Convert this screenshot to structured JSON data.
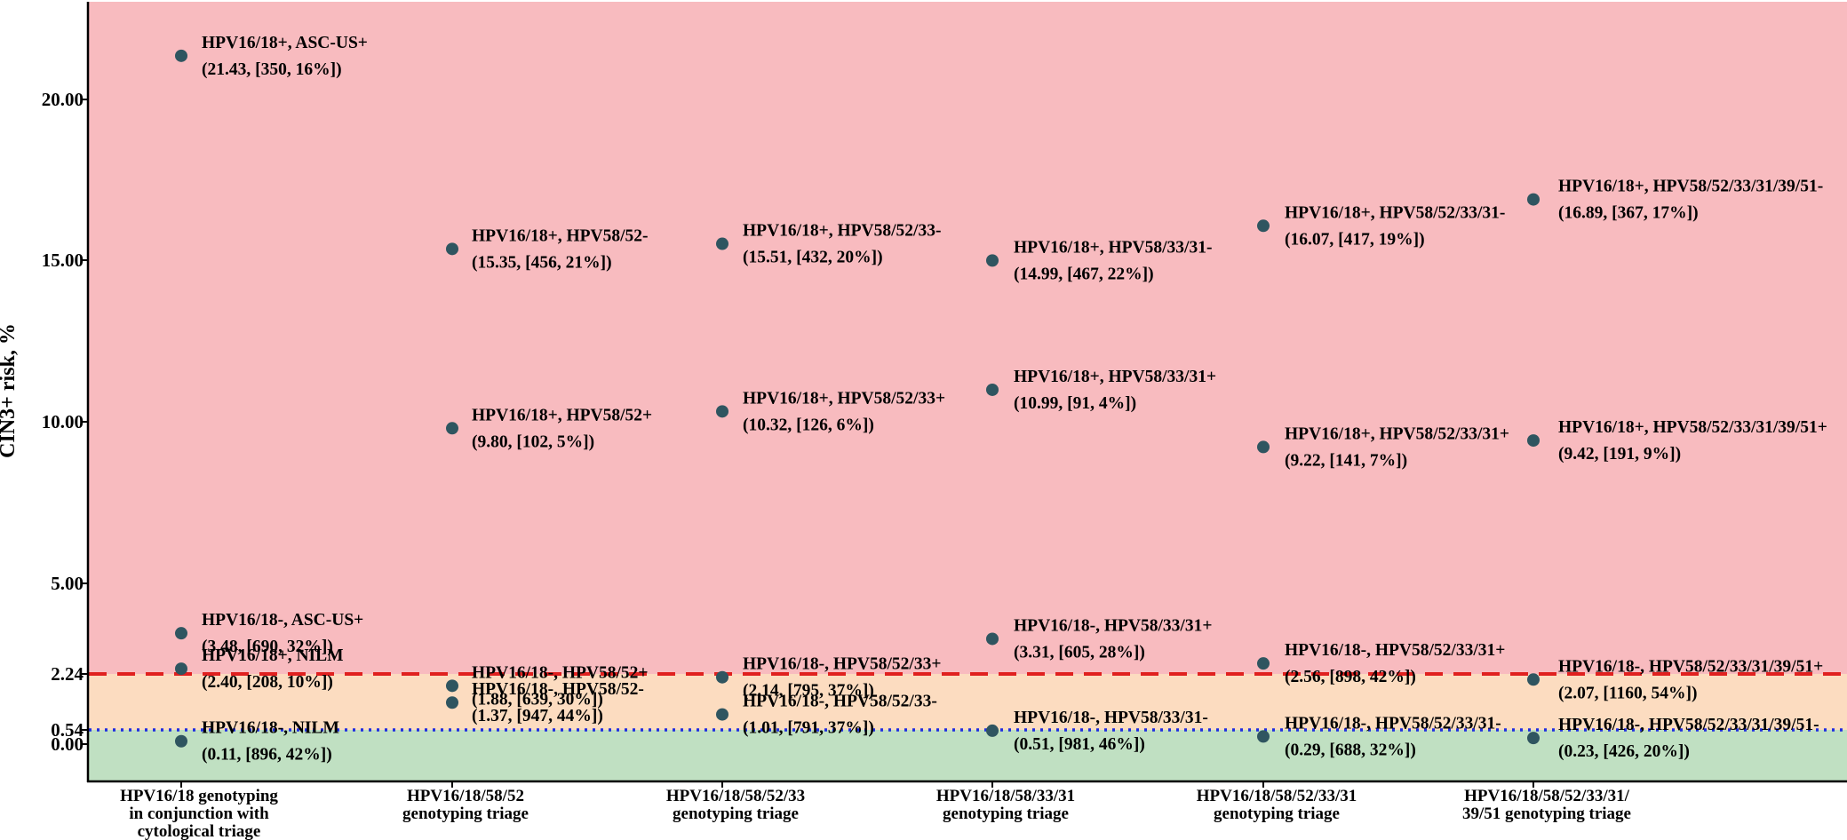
{
  "chart_data": {
    "type": "scatter",
    "title": "",
    "xlabel": "",
    "ylabel": "CIN3+ risk, %",
    "y_scale": "piecewise-linear (0 to 5 expanded)",
    "ylim": [
      -1.2,
      23.2
    ],
    "y_ticks": [
      0.0,
      0.54,
      2.24,
      5.0,
      10.0,
      15.0,
      20.0
    ],
    "y_tick_labels": [
      "0.00",
      "0.54",
      "2.24",
      "5.00",
      "10.00",
      "15.00",
      "20.00"
    ],
    "grid": false,
    "legend": "none",
    "risk_bands": [
      {
        "name": "low",
        "from": -1.2,
        "to": 0.54,
        "color": "#c0e0c2"
      },
      {
        "name": "intermediate",
        "from": 0.54,
        "to": 2.24,
        "color": "#fcdcc0"
      },
      {
        "name": "high",
        "from": 2.24,
        "to": 23.2,
        "color": "#f8bbbf"
      }
    ],
    "thresholds": [
      {
        "value": 2.24,
        "style": "dashed",
        "color": "#e0201f"
      },
      {
        "value": 0.54,
        "style": "dotted",
        "color": "#1f2de0"
      }
    ],
    "point_color": "#2f5560",
    "categories": [
      [
        "HPV16/18 genotyping",
        "in conjunction with",
        "cytological triage"
      ],
      [
        "HPV16/18/58/52",
        "genotyping triage"
      ],
      [
        "HPV16/18/58/52/33",
        "genotyping triage"
      ],
      [
        "HPV16/18/58/33/31",
        "genotyping triage"
      ],
      [
        "HPV16/18/58/52/33/31",
        "genotyping triage"
      ],
      [
        "HPV16/18/58/52/33/31/",
        "39/51 genotyping triage"
      ]
    ],
    "points": [
      {
        "cat": 0,
        "y": 21.43,
        "line1": "HPV16/18+, ASC-US+",
        "line2": "(21.43, [350, 16%])"
      },
      {
        "cat": 0,
        "y": 3.48,
        "line1": "HPV16/18-, ASC-US+",
        "line2": "(3.48, [690, 32%])"
      },
      {
        "cat": 0,
        "y": 2.4,
        "line1": "HPV16/18+, NILM",
        "line2": "(2.40, [208, 10%])"
      },
      {
        "cat": 0,
        "y": 0.11,
        "line1": "HPV16/18-, NILM",
        "line2": "(0.11, [896, 42%])"
      },
      {
        "cat": 1,
        "y": 15.35,
        "line1": "HPV16/18+, HPV58/52-",
        "line2": "(15.35, [456, 21%])"
      },
      {
        "cat": 1,
        "y": 9.8,
        "line1": "HPV16/18+, HPV58/52+",
        "line2": "(9.80, [102, 5%])"
      },
      {
        "cat": 1,
        "y": 1.88,
        "line1": "HPV16/18-, HPV58/52+",
        "line2": "(1.88, [639, 30%])"
      },
      {
        "cat": 1,
        "y": 1.37,
        "line1": "HPV16/18-, HPV58/52-",
        "line2": "(1.37, [947, 44%])"
      },
      {
        "cat": 2,
        "y": 15.51,
        "line1": "HPV16/18+, HPV58/52/33-",
        "line2": "(15.51, [432, 20%])"
      },
      {
        "cat": 2,
        "y": 10.32,
        "line1": "HPV16/18+, HPV58/52/33+",
        "line2": "(10.32, [126, 6%])"
      },
      {
        "cat": 2,
        "y": 2.14,
        "line1": "HPV16/18-, HPV58/52/33+",
        "line2": "(2.14, [795, 37%])"
      },
      {
        "cat": 2,
        "y": 1.01,
        "line1": "HPV16/18-, HPV58/52/33-",
        "line2": "(1.01, [791, 37%])"
      },
      {
        "cat": 3,
        "y": 14.99,
        "line1": "HPV16/18+, HPV58/33/31-",
        "line2": "(14.99, [467, 22%])"
      },
      {
        "cat": 3,
        "y": 10.99,
        "line1": "HPV16/18+, HPV58/33/31+",
        "line2": "(10.99, [91, 4%])"
      },
      {
        "cat": 3,
        "y": 3.31,
        "line1": "HPV16/18-, HPV58/33/31+",
        "line2": "(3.31, [605, 28%])"
      },
      {
        "cat": 3,
        "y": 0.51,
        "line1": "HPV16/18-, HPV58/33/31-",
        "line2": "(0.51, [981, 46%])"
      },
      {
        "cat": 4,
        "y": 16.07,
        "line1": "HPV16/18+, HPV58/52/33/31-",
        "line2": "(16.07, [417, 19%])"
      },
      {
        "cat": 4,
        "y": 9.22,
        "line1": "HPV16/18+, HPV58/52/33/31+",
        "line2": "(9.22, [141, 7%])"
      },
      {
        "cat": 4,
        "y": 2.56,
        "line1": "HPV16/18-, HPV58/52/33/31+",
        "line2": "(2.56, [898, 42%])"
      },
      {
        "cat": 4,
        "y": 0.29,
        "line1": "HPV16/18-, HPV58/52/33/31-",
        "line2": "(0.29, [688, 32%])"
      },
      {
        "cat": 5,
        "y": 16.89,
        "line1": "HPV16/18+, HPV58/52/33/31/39/51-",
        "line2": "(16.89, [367, 17%])"
      },
      {
        "cat": 5,
        "y": 9.42,
        "line1": "HPV16/18+, HPV58/52/33/31/39/51+",
        "line2": "(9.42, [191, 9%])"
      },
      {
        "cat": 5,
        "y": 2.07,
        "line1": "HPV16/18-, HPV58/52/33/31/39/51+",
        "line2": "(2.07, [1160, 54%])"
      },
      {
        "cat": 5,
        "y": 0.23,
        "line1": "HPV16/18-, HPV58/52/33/31/39/51-",
        "line2": "(0.23, [426, 20%])"
      }
    ]
  }
}
